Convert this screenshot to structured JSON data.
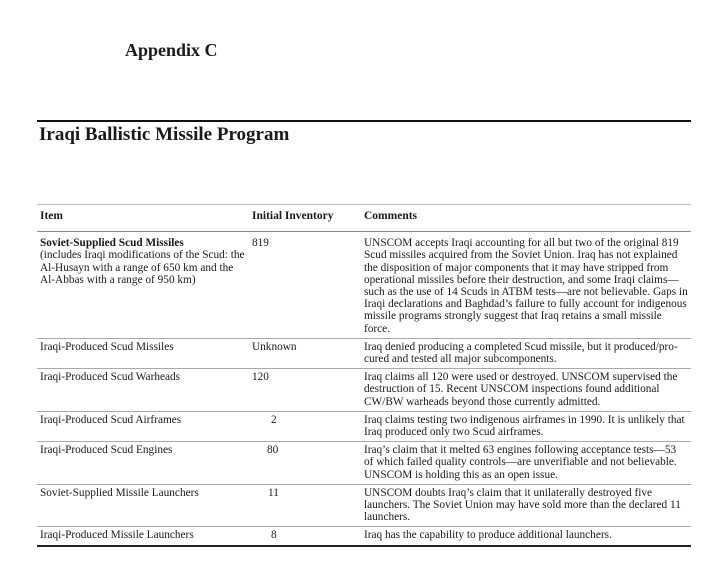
{
  "appendix": "Appendix C",
  "title": "Iraqi Ballistic Missile Program",
  "table": {
    "headers": [
      "Item",
      "Initial Inventory",
      "Comments"
    ],
    "rows": [
      {
        "item": "Soviet-Supplied Scud Missiles",
        "item_note": "(includes Iraqi modifications of the Scud: the Al-Husayn with a range of 650 km and the Al-Abbas with a range of 950 km)",
        "inventory": "819",
        "comments": "UNSCOM accepts Iraqi accounting for all but two of the original 819 Scud missiles acquired from the Soviet Union.  Iraq has not explained the disposition of major components that it may have stripped from operational missiles before their destruction, and some Iraqi claims—such as the use of 14 Scuds in ATBM tests—are not believable.  Gaps in Iraqi declarations and Baghdad’s failure to fully account for indigenous missile programs strongly suggest that Iraq retains a small missile force."
      },
      {
        "item": "Iraqi-Produced Scud Missiles",
        "inventory": "Unknown",
        "comments": "Iraq denied producing a completed Scud missile, but it produced/pro-cured and tested all major subcomponents."
      },
      {
        "item": "Iraqi-Produced Scud Warheads",
        "inventory": "120",
        "comments": "Iraq claims all 120 were used or destroyed.  UNSCOM supervised the destruction of 15.  Recent UNSCOM inspections found additional CW/BW warheads beyond those currently admitted."
      },
      {
        "item": "Iraqi-Produced Scud Airframes",
        "inventory": "2",
        "comments": "Iraq claims testing two indigenous airframes in 1990.  It is unlikely that Iraq produced only two Scud airframes."
      },
      {
        "item": "Iraqi-Produced Scud Engines",
        "inventory": "80",
        "comments": "Iraq’s claim that it melted 63 engines following acceptance tests—53 of which failed quality controls—are unverifiable and not believable.  UNSCOM is holding this as an open issue."
      },
      {
        "item": "Soviet-Supplied Missile Launchers",
        "inventory": "11",
        "comments": "UNSCOM doubts Iraq’s claim that it unilaterally destroyed five launchers.  The Soviet Union may have sold more than the declared 11 launchers."
      },
      {
        "item": "Iraqi-Produced Missile Launchers",
        "inventory": "8",
        "comments": "Iraq has the capability to produce additional launchers."
      }
    ]
  }
}
